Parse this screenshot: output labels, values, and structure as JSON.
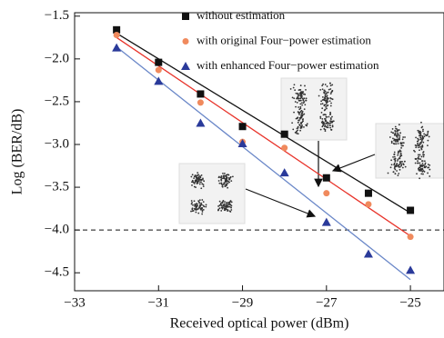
{
  "chart_data": {
    "type": "scatter",
    "x_label": "Received optical power (dBm)",
    "y_label": "Log (BER/dB)",
    "xlim": [
      -33,
      -24.2
    ],
    "ylim": [
      -4.71,
      -1.46
    ],
    "xticks": [
      {
        "value": -33,
        "label": "−33"
      },
      {
        "value": -31,
        "label": "−31"
      },
      {
        "value": -29,
        "label": "−29"
      },
      {
        "value": -27,
        "label": "−27"
      },
      {
        "value": -25,
        "label": "−25"
      }
    ],
    "yticks": [
      {
        "value": -1.5,
        "label": "−1.5"
      },
      {
        "value": -2.0,
        "label": "−2.0"
      },
      {
        "value": -2.5,
        "label": "−2.5"
      },
      {
        "value": -3.0,
        "label": "−3.0"
      },
      {
        "value": -3.5,
        "label": "−3.5"
      },
      {
        "value": -4.0,
        "label": "−4.0"
      },
      {
        "value": -4.5,
        "label": "−4.5"
      }
    ],
    "threshold": -4.0,
    "fit_x": [
      -32,
      -25
    ],
    "x": [
      -32,
      -31,
      -30,
      -29,
      -28,
      -27,
      -26,
      -25
    ],
    "series": [
      {
        "name": "without estimation",
        "marker": "square",
        "color": "#111111",
        "line_color": "#111111",
        "values": [
          -1.66,
          -2.04,
          -2.41,
          -2.79,
          -2.88,
          -3.39,
          -3.57,
          -3.77
        ],
        "fit": [
          -1.7,
          -3.8
        ]
      },
      {
        "name": "with original Four−power estimation",
        "marker": "circle",
        "color": "#f08a5d",
        "line_color": "#e8332a",
        "values": [
          -1.72,
          -2.13,
          -2.51,
          -2.97,
          -3.04,
          -3.57,
          -3.7,
          -4.08
        ],
        "fit": [
          -1.75,
          -4.07
        ]
      },
      {
        "name": "with enhanced Four−power estimation",
        "marker": "triangle",
        "color": "#2a3a9a",
        "line_color": "#6a87c8",
        "values": [
          -1.87,
          -2.26,
          -2.75,
          -2.99,
          -3.33,
          -3.91,
          -4.28,
          -4.47
        ],
        "fit": [
          -1.86,
          -4.58
        ]
      }
    ]
  }
}
